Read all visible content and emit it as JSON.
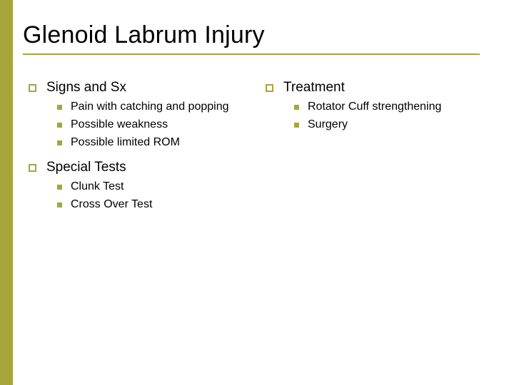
{
  "colors": {
    "accent": "#a7a53b",
    "title_underline": "#a7a53b",
    "sidebar": "#a7a53b",
    "section_bullet_border": "#a7a53b",
    "item_bullet_fill": "#a7a53b",
    "text": "#000000",
    "background": "#ffffff"
  },
  "title": "Glenoid Labrum Injury",
  "left_column": [
    {
      "heading": "Signs and Sx",
      "items": [
        "Pain with catching and popping",
        "Possible weakness",
        "Possible limited  ROM"
      ]
    },
    {
      "heading": "Special Tests",
      "items": [
        "Clunk Test",
        "Cross Over Test"
      ]
    }
  ],
  "right_column": [
    {
      "heading": "Treatment",
      "items": [
        "Rotator Cuff strengthening",
        "Surgery"
      ]
    }
  ]
}
